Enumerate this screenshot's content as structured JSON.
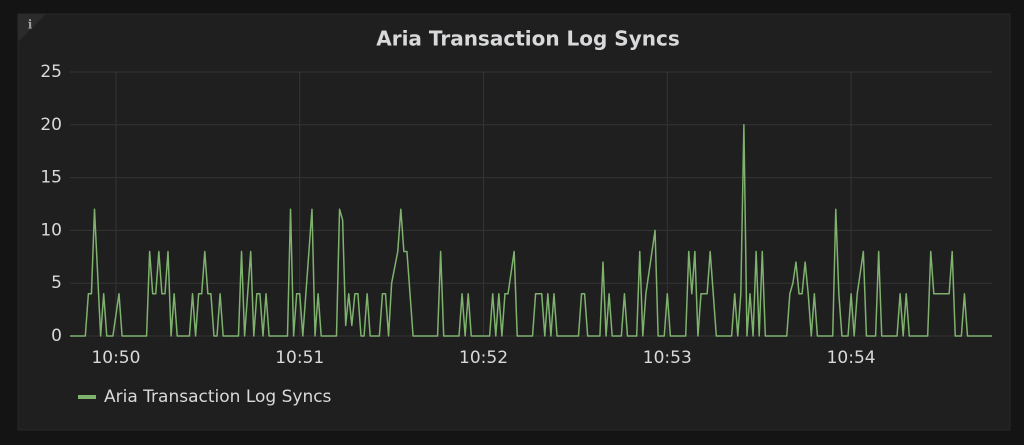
{
  "panel": {
    "info_icon": "i"
  },
  "chart_data": {
    "type": "line",
    "title": "Aria Transaction Log Syncs",
    "x": [
      38985,
      38990,
      38991,
      38992,
      38993,
      38994,
      38995,
      38996,
      38997,
      38999,
      39001,
      39002,
      39010,
      39011,
      39012,
      39013,
      39014,
      39015,
      39016,
      39017,
      39018,
      39019,
      39020,
      39024,
      39025,
      39026,
      39027,
      39028,
      39029,
      39030,
      39031,
      39032,
      39033,
      39034,
      39035,
      39040,
      39041,
      39042,
      39043,
      39044,
      39045,
      39046,
      39047,
      39048,
      39049,
      39050,
      39056,
      39057,
      39058,
      39059,
      39060,
      39061,
      39062,
      39064,
      39065,
      39066,
      39067,
      39072,
      39073,
      39074,
      39075,
      39076,
      39077,
      39078,
      39079,
      39080,
      39081,
      39082,
      39083,
      39086,
      39087,
      39088,
      39089,
      39090,
      39092,
      39093,
      39094,
      39095,
      39096,
      39097,
      39105,
      39106,
      39107,
      39112,
      39113,
      39114,
      39115,
      39116,
      39122,
      39123,
      39124,
      39125,
      39126,
      39127,
      39128,
      39130,
      39131,
      39136,
      39137,
      39139,
      39140,
      39141,
      39142,
      39143,
      39144,
      39151,
      39152,
      39153,
      39154,
      39158,
      39159,
      39160,
      39161,
      39162,
      39165,
      39166,
      39167,
      39170,
      39171,
      39172,
      39173,
      39174,
      39175,
      39176,
      39177,
      39179,
      39180,
      39181,
      39186,
      39187,
      39188,
      39189,
      39190,
      39191,
      39193,
      39194,
      39195,
      39196,
      39201,
      39202,
      39203,
      39204,
      39205,
      39206,
      39207,
      39208,
      39209,
      39210,
      39211,
      39212,
      39219,
      39220,
      39221,
      39222,
      39223,
      39224,
      39225,
      39226,
      39227,
      39228,
      39229,
      39234,
      39235,
      39236,
      39237,
      39238,
      39239,
      39240,
      39241,
      39242,
      39244,
      39245,
      39248,
      39249,
      39250,
      39255,
      39256,
      39257,
      39258,
      39259,
      39265,
      39266,
      39267,
      39269,
      39270,
      39272,
      39273,
      39274,
      39276,
      39277,
      39278,
      39286
    ],
    "series": [
      {
        "name": "Aria Transaction Log Syncs",
        "color": "#7eb26d",
        "values": [
          0,
          0,
          4,
          4,
          12,
          6,
          0,
          4,
          0,
          0,
          4,
          0,
          0,
          8,
          4,
          4,
          8,
          4,
          4,
          8,
          0,
          4,
          0,
          0,
          4,
          0,
          4,
          4,
          8,
          4,
          4,
          0,
          0,
          4,
          0,
          0,
          8,
          0,
          4,
          8,
          0,
          4,
          4,
          0,
          4,
          0,
          0,
          12,
          0,
          4,
          4,
          0,
          4,
          12,
          0,
          4,
          0,
          0,
          12,
          11,
          1,
          4,
          1,
          4,
          4,
          0,
          0,
          4,
          0,
          0,
          4,
          4,
          0,
          5,
          8,
          12,
          8,
          8,
          4,
          0,
          0,
          8,
          0,
          0,
          4,
          0,
          4,
          0,
          0,
          4,
          0,
          4,
          0,
          4,
          4,
          8,
          0,
          0,
          4,
          4,
          0,
          4,
          0,
          4,
          0,
          0,
          4,
          4,
          0,
          0,
          7,
          0,
          4,
          0,
          0,
          4,
          0,
          0,
          8,
          0,
          4,
          6,
          8,
          10,
          0,
          0,
          4,
          0,
          0,
          8,
          4,
          8,
          0,
          4,
          4,
          8,
          4,
          0,
          0,
          4,
          0,
          4,
          20,
          0,
          4,
          0,
          8,
          0,
          8,
          0,
          0,
          4,
          5,
          7,
          4,
          4,
          7,
          4,
          0,
          4,
          0,
          0,
          12,
          4,
          0,
          0,
          0,
          4,
          0,
          4,
          8,
          0,
          0,
          8,
          0,
          0,
          4,
          0,
          4,
          0,
          0,
          8,
          4,
          4,
          4,
          4,
          8,
          0,
          0,
          4,
          0,
          0
        ]
      }
    ],
    "xlim": [
      38985,
      39286
    ],
    "xticks": [
      {
        "value": 39000,
        "label": "10:50"
      },
      {
        "value": 39060,
        "label": "10:51"
      },
      {
        "value": 39120,
        "label": "10:52"
      },
      {
        "value": 39180,
        "label": "10:53"
      },
      {
        "value": 39240,
        "label": "10:54"
      }
    ],
    "ylim": [
      0,
      25
    ],
    "yticks": [
      0,
      5,
      10,
      15,
      20,
      25
    ],
    "grid": true
  }
}
